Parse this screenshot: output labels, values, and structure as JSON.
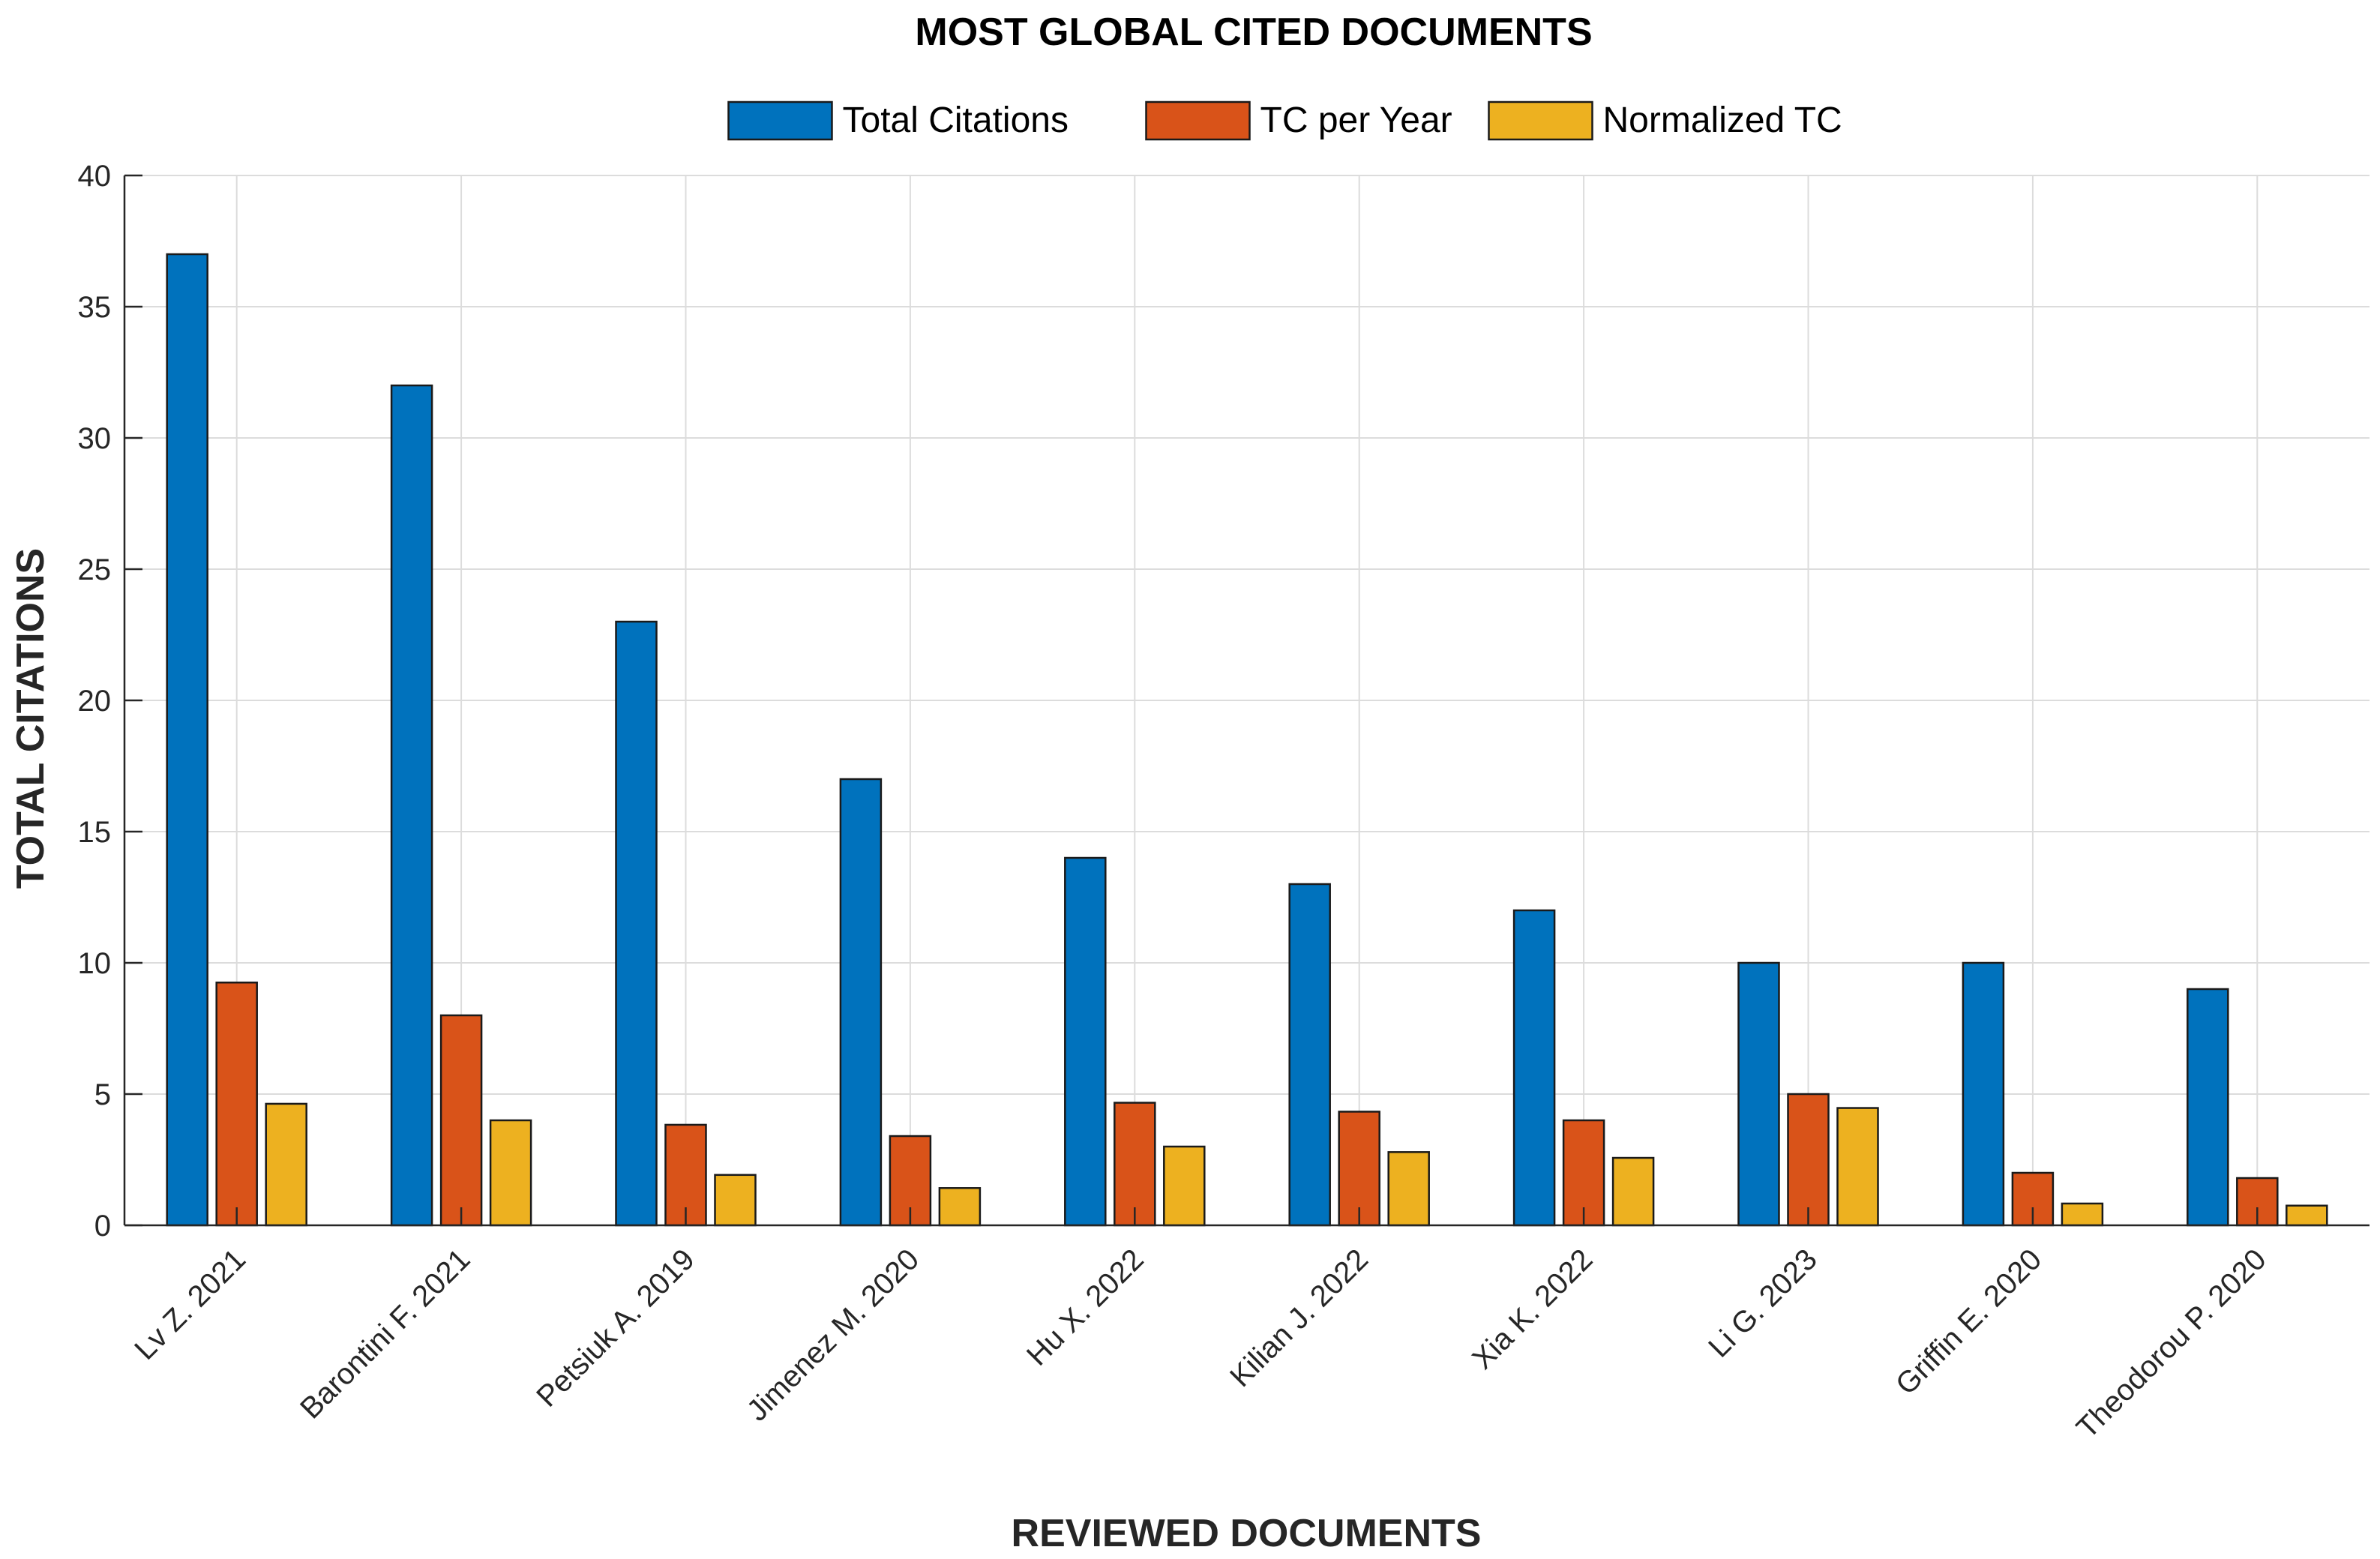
{
  "chart_data": {
    "type": "bar",
    "title": "MOST GLOBAL CITED DOCUMENTS",
    "xlabel": "REVIEWED DOCUMENTS",
    "ylabel": "TOTAL CITATIONS",
    "ylim": [
      0,
      40
    ],
    "yticks": [
      0,
      5,
      10,
      15,
      20,
      25,
      30,
      35,
      40
    ],
    "grid": true,
    "legend_position": "top-center",
    "categories": [
      "Lv Z. 2021",
      "Barontini F. 2021",
      "Petsiuk A. 2019",
      "Jimenez M. 2020",
      "Hu X. 2022",
      "Kilian J. 2022",
      "Xia K. 2022",
      "Li G. 2023",
      "Griffin E. 2020",
      "Theodorou P. 2020"
    ],
    "series": [
      {
        "name": "Total Citations",
        "color": "#0072BD",
        "values": [
          37,
          32,
          23,
          17,
          14,
          13,
          12,
          10,
          10,
          9
        ]
      },
      {
        "name": "TC per Year",
        "color": "#D95319",
        "values": [
          9.25,
          8.0,
          3.83,
          3.4,
          4.67,
          4.33,
          4.0,
          5.0,
          2.0,
          1.8
        ]
      },
      {
        "name": "Normalized TC",
        "color": "#EDB120",
        "values": [
          4.63,
          4.0,
          1.92,
          1.42,
          3.0,
          2.79,
          2.57,
          4.47,
          0.83,
          0.75
        ]
      }
    ]
  }
}
